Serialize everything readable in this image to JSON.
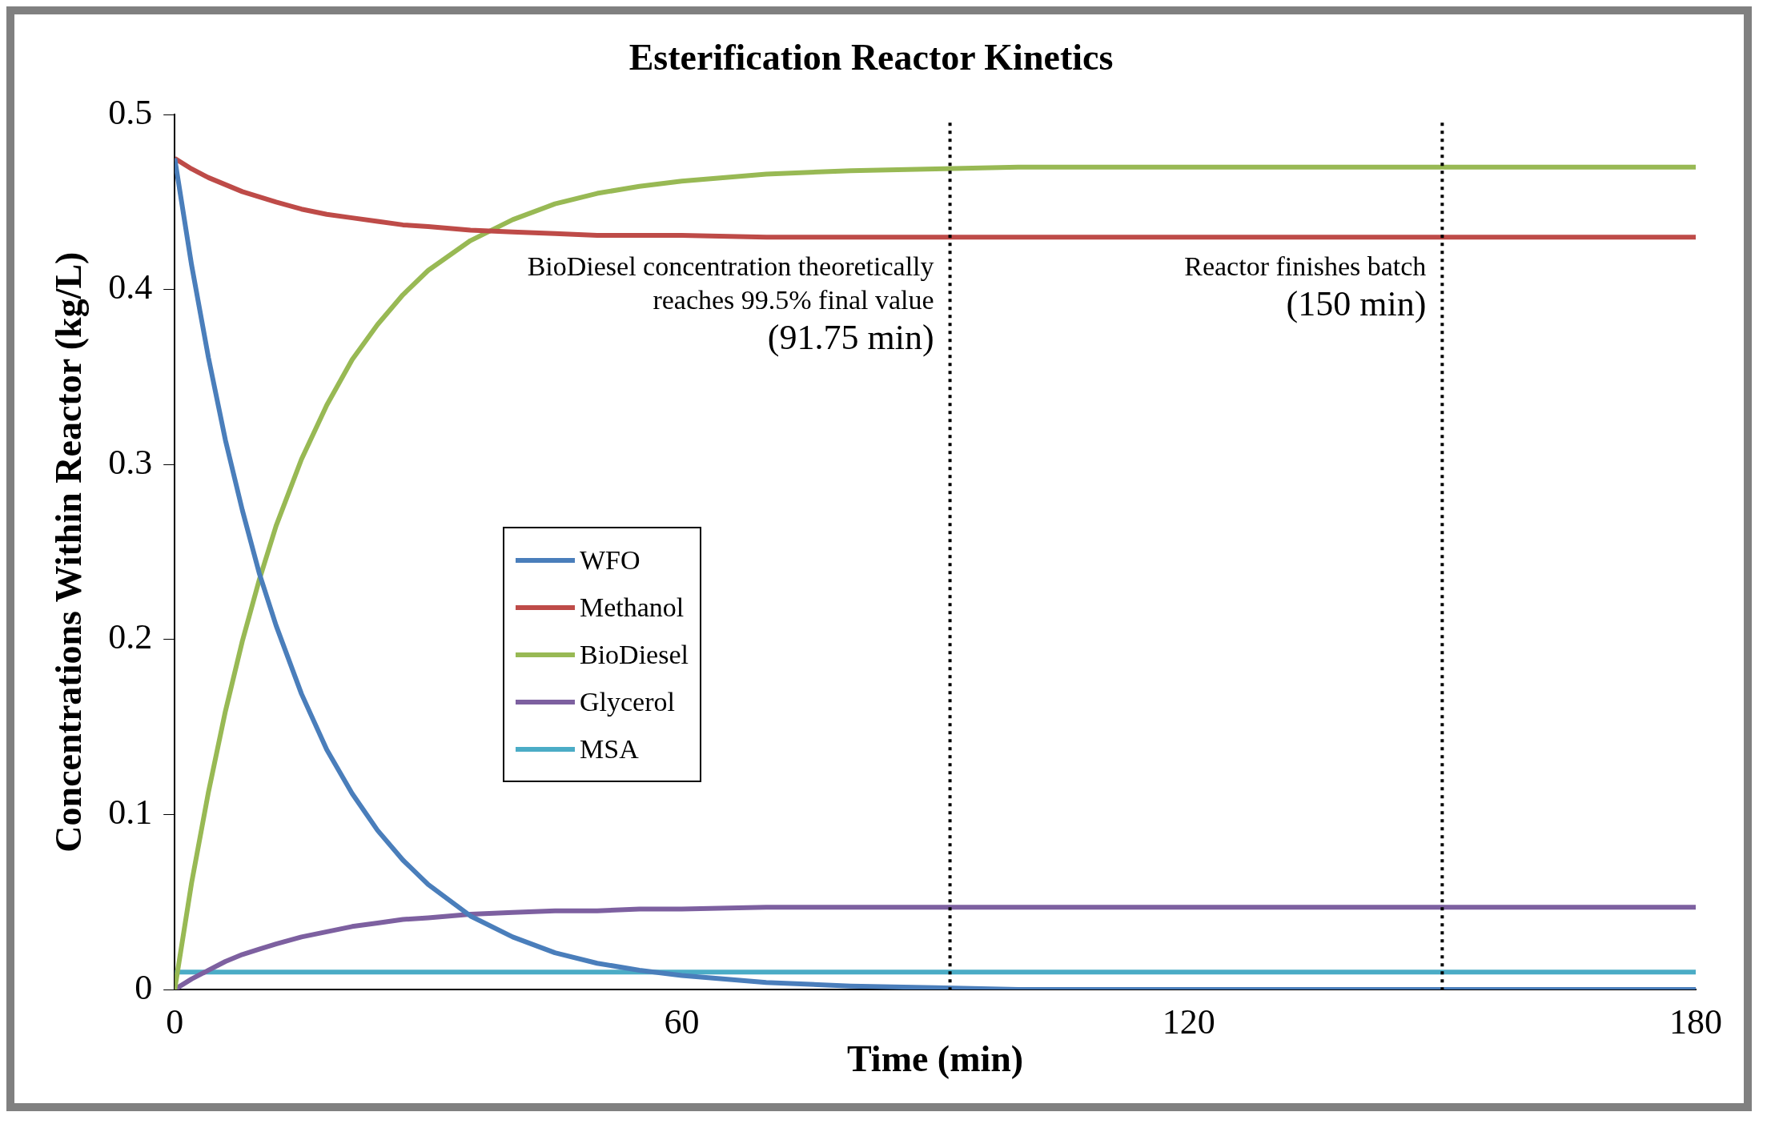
{
  "chart_data": {
    "type": "line",
    "title": "Esterification Reactor Kinetics",
    "xlabel": "Time (min)",
    "ylabel": "Concentrations Within Reactor (kg/L)",
    "x": [
      0,
      2,
      4,
      6,
      8,
      10,
      12,
      15,
      18,
      21,
      24,
      27,
      30,
      35,
      40,
      45,
      50,
      55,
      60,
      70,
      80,
      90,
      100,
      120,
      150,
      180
    ],
    "series": [
      {
        "name": "WFO",
        "color": "#4a7ebb",
        "values": [
          0.475,
          0.414,
          0.361,
          0.314,
          0.274,
          0.238,
          0.208,
          0.169,
          0.137,
          0.112,
          0.091,
          0.074,
          0.06,
          0.042,
          0.03,
          0.021,
          0.015,
          0.011,
          0.008,
          0.004,
          0.002,
          0.001,
          0,
          0,
          0,
          0
        ]
      },
      {
        "name": "Methanol",
        "color": "#be4b48",
        "values": [
          0.475,
          0.469,
          0.464,
          0.46,
          0.456,
          0.453,
          0.45,
          0.446,
          0.443,
          0.441,
          0.439,
          0.437,
          0.436,
          0.434,
          0.433,
          0.432,
          0.431,
          0.431,
          0.431,
          0.43,
          0.43,
          0.43,
          0.43,
          0.43,
          0.43,
          0.43
        ]
      },
      {
        "name": "BioDiesel",
        "color": "#98b954",
        "values": [
          0,
          0.061,
          0.113,
          0.159,
          0.199,
          0.234,
          0.265,
          0.303,
          0.334,
          0.36,
          0.38,
          0.397,
          0.411,
          0.428,
          0.44,
          0.449,
          0.455,
          0.459,
          0.462,
          0.466,
          0.468,
          0.469,
          0.47,
          0.47,
          0.47,
          0.47
        ]
      },
      {
        "name": "Glycerol",
        "color": "#7d60a0",
        "values": [
          0,
          0.006,
          0.011,
          0.016,
          0.02,
          0.023,
          0.026,
          0.03,
          0.033,
          0.036,
          0.038,
          0.04,
          0.041,
          0.043,
          0.044,
          0.045,
          0.045,
          0.046,
          0.046,
          0.047,
          0.047,
          0.047,
          0.047,
          0.047,
          0.047,
          0.047
        ]
      },
      {
        "name": "MSA",
        "color": "#4bacc6",
        "values": [
          0.01,
          0.01,
          0.01,
          0.01,
          0.01,
          0.01,
          0.01,
          0.01,
          0.01,
          0.01,
          0.01,
          0.01,
          0.01,
          0.01,
          0.01,
          0.01,
          0.01,
          0.01,
          0.01,
          0.01,
          0.01,
          0.01,
          0.01,
          0.01,
          0.01,
          0.01
        ]
      }
    ],
    "xlim": [
      0,
      180
    ],
    "xticks": [
      0,
      60,
      120,
      180
    ],
    "ylim": [
      0,
      0.5
    ],
    "yticks": [
      0,
      0.1,
      0.2,
      0.3,
      0.4,
      0.5
    ],
    "ref_lines": [
      {
        "axis": "x",
        "value": 91.75,
        "label": "BioDiesel concentration theoretically\nreaches 99.5% final value\n(91.75 min)",
        "line_style": "dotted",
        "color": "#000000"
      },
      {
        "axis": "x",
        "value": 150,
        "label": "Reactor finishes batch\n(150 min)",
        "line_style": "dotted",
        "color": "#000000"
      }
    ],
    "grid": false,
    "legend": "left",
    "marker": "none",
    "line_style": "solid"
  }
}
